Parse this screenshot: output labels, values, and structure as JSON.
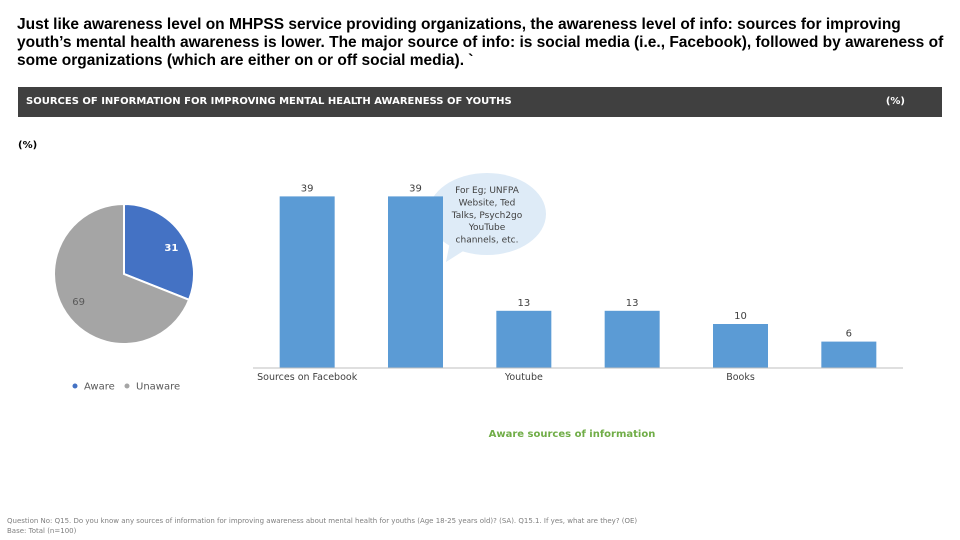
{
  "headline": "Just like awareness level on MHPSS service providing organizations, the awareness level of info: sources for improving youth’s mental health awareness is lower. The major source of info: is social media (i.e., Facebook), followed by awareness of some organizations (which are either on or off social media). `",
  "banner": {
    "title": "SOURCES OF INFORMATION FOR IMPROVING MENTAL HEALTH AWARENESS OF YOUTHS",
    "unit": "(%)"
  },
  "pie_unit_label": "(%)",
  "callout_text": [
    "For Eg; UNFPA",
    "Website, Ted",
    "Talks, Psych2go",
    "YouTube",
    "channels, etc."
  ],
  "colors": {
    "aware": "#4472C4",
    "unaware": "#A5A5A5",
    "bar": "#5B9BD5",
    "axis_title": "#70AD47",
    "banner_bg": "#404040",
    "callout_bg": "#DEEBF7"
  },
  "chart_data": [
    {
      "type": "pie",
      "labels": [
        "Aware",
        "Unaware"
      ],
      "values": [
        31,
        69
      ],
      "legend": "bottom"
    },
    {
      "type": "bar",
      "categories": [
        "Sources on Facebook",
        "",
        "Youtube",
        "",
        "Books",
        ""
      ],
      "values": [
        39,
        39,
        13,
        13,
        10,
        6
      ],
      "xlabel": "Aware sources of information",
      "ylabel": "",
      "ylim": [
        0,
        45
      ],
      "grid": false
    }
  ],
  "footer": {
    "question": "Question No: Q15. Do you know any sources of information for improving awareness about mental health for youths (Age 18-25 years old)? (SA). Q15.1. If yes, what are they? (OE)",
    "base": "Base: Total (n=100)"
  }
}
